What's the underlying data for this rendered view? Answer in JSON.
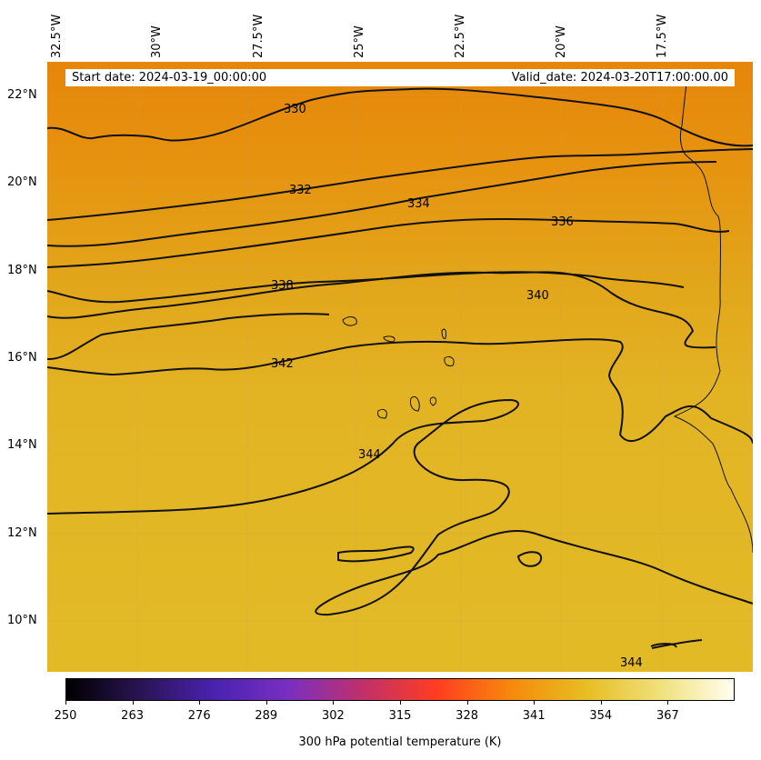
{
  "info": {
    "start_date": "Start date: 2024-03-19_00:00:00",
    "valid_date": "Valid_date: 2024-03-20T17:00:00.00"
  },
  "longitudes": [
    "32.5°W",
    "30°W",
    "27.5°W",
    "25°W",
    "22.5°W",
    "20°W",
    "17.5°W"
  ],
  "latitudes": [
    "22°N",
    "20°N",
    "18°N",
    "16°N",
    "14°N",
    "12°N",
    "10°N"
  ],
  "contours": {
    "labels": [
      "330",
      "332",
      "334",
      "336",
      "338",
      "340",
      "342",
      "344",
      "344"
    ]
  },
  "colorbar": {
    "title": "300 hPa potential temperature (K)",
    "ticks": [
      "250",
      "263",
      "276",
      "289",
      "302",
      "315",
      "328",
      "341",
      "354",
      "367"
    ],
    "min": 250,
    "max": 380,
    "colors": [
      "#000000",
      "#2a1454",
      "#4a22b0",
      "#7a2fc0",
      "#c0306a",
      "#ff3d20",
      "#f58a0c",
      "#e8bd22",
      "#efe07a",
      "#fffef0"
    ]
  },
  "field": {
    "top_color": "#e6860a",
    "bottom_color": "#e2ba26"
  }
}
